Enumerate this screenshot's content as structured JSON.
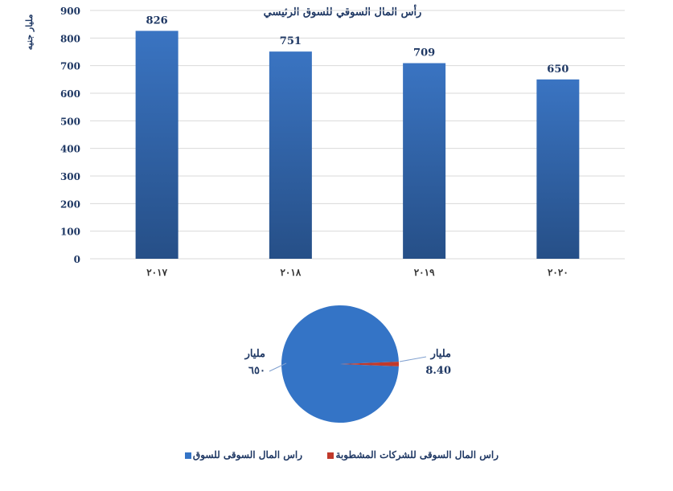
{
  "chart_data": [
    {
      "type": "bar",
      "title": "رأس المال السوقي للسوق الرئيسي",
      "ylabel": "مليار جنيه",
      "xlabel": "",
      "categories": [
        "٢٠١٧",
        "٢٠١٨",
        "٢٠١٩",
        "٢٠٢٠"
      ],
      "values": [
        826,
        751,
        709,
        650
      ],
      "data_labels": [
        "826",
        "751",
        "709",
        "650"
      ],
      "ylim": [
        0,
        900
      ],
      "yticks": [
        "0",
        "100",
        "200",
        "300",
        "400",
        "500",
        "600",
        "700",
        "800",
        "900"
      ],
      "grid": true,
      "colors": {
        "bar_top": "#3a74c2",
        "bar_bottom": "#264f87",
        "grid": "#d9d9d9",
        "text": "#1f3864"
      }
    },
    {
      "type": "pie",
      "slices": [
        {
          "name": "راس المال السوقى للسوق",
          "value": 650,
          "label_unit": "مليار",
          "label_value": "٦٥٠",
          "color": "#3474c6"
        },
        {
          "name": "راس المال السوقى للشركات المشطوبة",
          "value": 8.4,
          "label_unit": "مليار",
          "label_value": "8.40",
          "color": "#c0392b"
        }
      ],
      "legend_position": "bottom",
      "legend": [
        "راس المال السوقى للشركات المشطوبة",
        "راس المال السوقى للسوق"
      ]
    }
  ]
}
